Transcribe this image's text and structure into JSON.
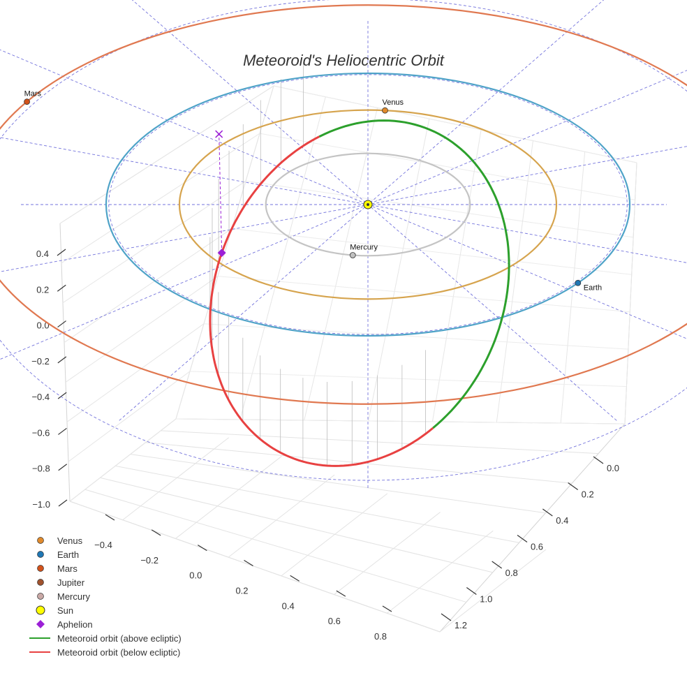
{
  "chart_data": {
    "type": "3d-orbit",
    "title": "Meteoroid's Heliocentric Orbit",
    "z_ticks": [
      "0.4",
      "0.2",
      "0.0",
      "−0.2",
      "−0.4",
      "−0.6",
      "−0.8",
      "−1.0"
    ],
    "x_ticks": [
      "−0.4",
      "−0.2",
      "0.0",
      "0.2",
      "0.4",
      "0.6",
      "0.8"
    ],
    "y_ticks": [
      "0.0",
      "0.2",
      "0.4",
      "0.6",
      "0.8",
      "1.0",
      "1.2"
    ],
    "planets": [
      {
        "name": "Mercury",
        "orbit_radius_au": 0.39,
        "color": "#c0c0c0",
        "orbit_color": "#c4c4c4"
      },
      {
        "name": "Venus",
        "orbit_radius_au": 0.72,
        "color": "#e08a2c",
        "orbit_color": "#d6a44e"
      },
      {
        "name": "Earth",
        "orbit_radius_au": 1.0,
        "color": "#1f77b4",
        "orbit_color": "#4fa3c8"
      },
      {
        "name": "Mars",
        "orbit_radius_au": 1.52,
        "color": "#d2521b",
        "orbit_color": "#e07850"
      }
    ],
    "meteoroid_orbit": {
      "above_label": "Meteoroid orbit (above ecliptic)",
      "below_label": "Meteoroid orbit (below ecliptic)",
      "above_color": "#2ca02c",
      "below_color": "#e84141"
    },
    "aphelion_label": "Aphelion",
    "aphelion_color": "#9b1fd6",
    "grid_color": "#5b5bd6"
  },
  "legend": [
    {
      "label": "Venus",
      "kind": "dot",
      "color": "#e08a2c"
    },
    {
      "label": "Earth",
      "kind": "dot",
      "color": "#1f77b4"
    },
    {
      "label": "Mars",
      "kind": "dot",
      "color": "#d2521b"
    },
    {
      "label": "Jupiter",
      "kind": "dot",
      "color": "#a0522d"
    },
    {
      "label": "Mercury",
      "kind": "dot",
      "color": "#c9a9a6"
    },
    {
      "label": "Sun",
      "kind": "sun",
      "color": "#ffff00"
    },
    {
      "label": "Aphelion",
      "kind": "diamond",
      "color": "#9b1fd6"
    },
    {
      "label": "Meteoroid orbit (above ecliptic)",
      "kind": "line",
      "color": "#2ca02c"
    },
    {
      "label": "Meteoroid orbit (below ecliptic)",
      "kind": "line",
      "color": "#e84141"
    }
  ]
}
